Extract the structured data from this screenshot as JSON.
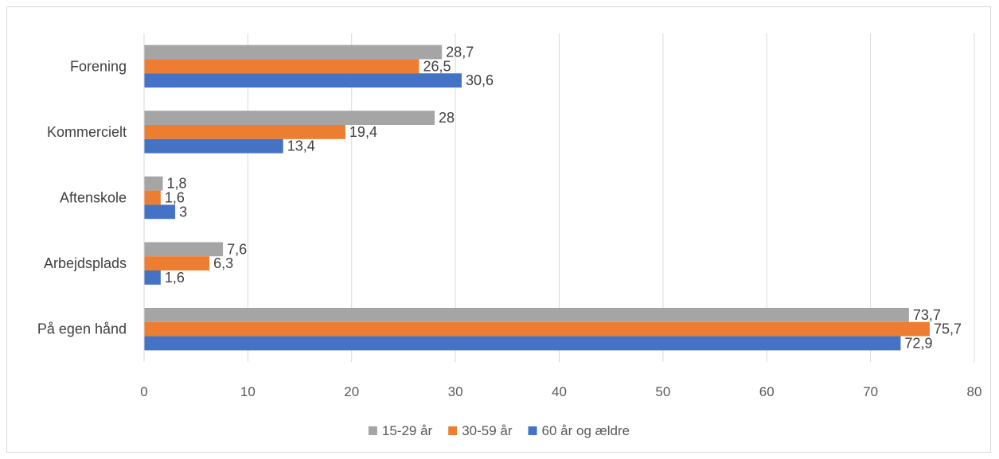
{
  "chart_data": {
    "type": "bar",
    "orientation": "horizontal",
    "categories": [
      "Forening",
      "Kommercielt",
      "Aftenskole",
      "Arbejdsplads",
      "På egen hånd"
    ],
    "series": [
      {
        "name": "15-29 år",
        "color": "#a5a5a5",
        "values": [
          28.7,
          28,
          1.8,
          7.6,
          73.7
        ],
        "labels": [
          "28,7",
          "28",
          "1,8",
          "7,6",
          "73,7"
        ]
      },
      {
        "name": "30-59 år",
        "color": "#ed7d31",
        "values": [
          26.5,
          19.4,
          1.6,
          6.3,
          75.7
        ],
        "labels": [
          "26,5",
          "19,4",
          "1,6",
          "6,3",
          "75,7"
        ]
      },
      {
        "name": "60 år og ældre",
        "color": "#4472c4",
        "values": [
          30.6,
          13.4,
          3,
          1.6,
          72.9
        ],
        "labels": [
          "30,6",
          "13,4",
          "3",
          "1,6",
          "72,9"
        ]
      }
    ],
    "xlim": [
      0,
      80
    ],
    "xticks": [
      0,
      10,
      20,
      30,
      40,
      50,
      60,
      70,
      80
    ],
    "grid": true,
    "legend_position": "bottom",
    "title": "",
    "xlabel": "",
    "ylabel": ""
  }
}
